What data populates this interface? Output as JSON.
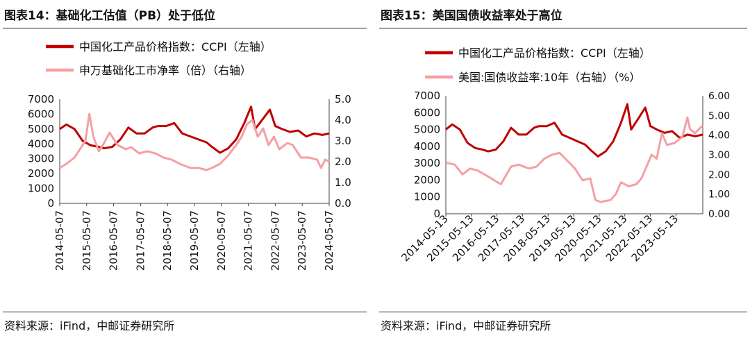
{
  "colors": {
    "dark_red": "#C00000",
    "light_red": "#F4A0A4",
    "axis": "#404040"
  },
  "charts": [
    {
      "title": "图表14：基础化工估值（PB）处于低位",
      "source": "资料来源：iFind，中邮证券研究所",
      "chart_data": {
        "type": "line",
        "legend_position": "top",
        "grid": false,
        "x_ticks": [
          "2014-05-07",
          "2015-05-07",
          "2016-05-07",
          "2017-05-07",
          "2018-05-07",
          "2019-05-07",
          "2020-05-07",
          "2021-05-07",
          "2022-05-07",
          "2023-05-07",
          "2024-05-07"
        ],
        "y_left_ticks": [
          "7000",
          "6000",
          "5000",
          "4000",
          "3000",
          "2000",
          "1000",
          "0"
        ],
        "y_right_ticks": [
          "5.0",
          "4.0",
          "3.0",
          "2.0",
          "1.0",
          "0.0"
        ],
        "ylim_left": [
          0,
          7000
        ],
        "ylim_right": [
          0,
          5
        ],
        "series": [
          {
            "name": "中国化工产品价格指数：CCPI（左轴）",
            "axis": "left",
            "color": "#C00000",
            "x": [
              2014.35,
              2014.6,
              2014.9,
              2015.2,
              2015.5,
              2015.8,
              2016.0,
              2016.3,
              2016.6,
              2016.9,
              2017.2,
              2017.5,
              2017.8,
              2018.0,
              2018.3,
              2018.6,
              2018.9,
              2019.2,
              2019.5,
              2019.8,
              2020.0,
              2020.3,
              2020.6,
              2020.9,
              2021.2,
              2021.45,
              2021.6,
              2021.9,
              2022.15,
              2022.35,
              2022.6,
              2022.9,
              2023.2,
              2023.5,
              2023.8,
              2024.1,
              2024.35
            ],
            "y": [
              5000,
              5300,
              5000,
              4200,
              3900,
              3800,
              3700,
              3800,
              4300,
              5100,
              4700,
              4700,
              5100,
              5200,
              5200,
              5400,
              4700,
              4500,
              4300,
              4100,
              3800,
              3400,
              3700,
              4300,
              5400,
              6500,
              5000,
              5700,
              6300,
              5200,
              5000,
              4800,
              4900,
              4500,
              4700,
              4600,
              4700
            ]
          },
          {
            "name": "申万基础化工市净率（倍）（右轴）",
            "axis": "right",
            "color": "#F4A0A4",
            "x": [
              2014.35,
              2014.6,
              2014.9,
              2015.1,
              2015.3,
              2015.45,
              2015.6,
              2015.8,
              2016.0,
              2016.2,
              2016.5,
              2016.8,
              2017.0,
              2017.3,
              2017.6,
              2017.9,
              2018.2,
              2018.5,
              2018.8,
              2019.0,
              2019.2,
              2019.5,
              2019.8,
              2020.0,
              2020.3,
              2020.6,
              2020.9,
              2021.1,
              2021.3,
              2021.5,
              2021.7,
              2021.9,
              2022.1,
              2022.3,
              2022.5,
              2022.8,
              2023.0,
              2023.3,
              2023.6,
              2023.9,
              2024.05,
              2024.2,
              2024.35
            ],
            "y": [
              1.7,
              1.9,
              2.2,
              2.6,
              3.0,
              4.3,
              3.2,
              2.5,
              2.9,
              3.4,
              2.8,
              2.6,
              2.7,
              2.4,
              2.5,
              2.4,
              2.2,
              2.1,
              1.9,
              1.8,
              1.7,
              1.7,
              1.6,
              1.7,
              1.9,
              2.3,
              2.8,
              3.2,
              3.8,
              4.0,
              3.2,
              3.6,
              2.8,
              3.2,
              2.6,
              2.9,
              2.8,
              2.2,
              2.2,
              2.1,
              1.7,
              2.1,
              2.0
            ]
          }
        ]
      }
    },
    {
      "title": "图表15：美国国债收益率处于高位",
      "source": "资料来源：iFind，中邮证券研究所",
      "chart_data": {
        "type": "line",
        "legend_position": "top",
        "grid": false,
        "x_ticks": [
          "2014-05-13",
          "2015-05-13",
          "2016-05-13",
          "2017-05-13",
          "2018-05-13",
          "2019-05-13",
          "2020-05-13",
          "2021-05-13",
          "2022-05-13",
          "2023-05-13"
        ],
        "y_left_ticks": [
          "7000",
          "6000",
          "5000",
          "4000",
          "3000",
          "2000",
          "1000",
          "0"
        ],
        "y_right_ticks": [
          "6.00",
          "5.00",
          "4.00",
          "3.00",
          "2.00",
          "1.00",
          "0.00"
        ],
        "ylim_left": [
          0,
          7000
        ],
        "ylim_right": [
          0,
          6
        ],
        "series": [
          {
            "name": "中国化工产品价格指数：CCPI（左轴）",
            "axis": "left",
            "color": "#C00000",
            "x": [
              2014.35,
              2014.6,
              2014.9,
              2015.2,
              2015.5,
              2015.8,
              2016.0,
              2016.3,
              2016.6,
              2016.9,
              2017.2,
              2017.5,
              2017.8,
              2018.0,
              2018.3,
              2018.6,
              2018.9,
              2019.2,
              2019.5,
              2019.8,
              2020.0,
              2020.3,
              2020.6,
              2020.9,
              2021.2,
              2021.45,
              2021.6,
              2021.9,
              2022.15,
              2022.35,
              2022.6,
              2022.9,
              2023.2,
              2023.5,
              2023.8,
              2024.1,
              2024.4
            ],
            "y": [
              5000,
              5300,
              5000,
              4200,
              3900,
              3800,
              3700,
              3800,
              4300,
              5100,
              4700,
              4700,
              5100,
              5200,
              5200,
              5400,
              4700,
              4500,
              4300,
              4100,
              3800,
              3400,
              3700,
              4300,
              5400,
              6500,
              5000,
              5700,
              6300,
              5200,
              5000,
              4800,
              4900,
              4500,
              4700,
              4600,
              4700
            ]
          },
          {
            "name": "美国:国债收益率:10年（右轴）（%）",
            "axis": "right",
            "color": "#F4A0A4",
            "x": [
              2014.35,
              2014.7,
              2015.0,
              2015.3,
              2015.6,
              2016.0,
              2016.5,
              2016.9,
              2017.2,
              2017.6,
              2017.9,
              2018.2,
              2018.5,
              2018.8,
              2019.1,
              2019.4,
              2019.7,
              2020.0,
              2020.2,
              2020.4,
              2020.8,
              2021.0,
              2021.2,
              2021.5,
              2021.8,
              2022.0,
              2022.2,
              2022.4,
              2022.6,
              2022.8,
              2023.0,
              2023.3,
              2023.6,
              2023.8,
              2023.9,
              2024.1,
              2024.4
            ],
            "y": [
              2.6,
              2.5,
              2.0,
              2.3,
              2.2,
              1.9,
              1.5,
              2.4,
              2.5,
              2.3,
              2.4,
              2.8,
              3.0,
              3.1,
              2.7,
              2.3,
              1.7,
              1.8,
              0.7,
              0.6,
              0.7,
              1.0,
              1.6,
              1.4,
              1.5,
              1.8,
              2.4,
              3.0,
              2.8,
              4.1,
              3.5,
              3.6,
              3.9,
              4.9,
              4.3,
              4.1,
              4.5
            ]
          }
        ]
      }
    }
  ]
}
